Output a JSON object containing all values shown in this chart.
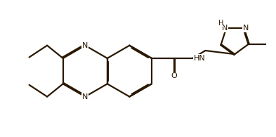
{
  "bg_color": "#ffffff",
  "line_color": "#2a1800",
  "text_color": "#2a1800",
  "line_width": 1.6,
  "font_size": 8.0,
  "fig_width": 3.93,
  "fig_height": 1.95,
  "dpi": 100,
  "xlim": [
    0,
    10
  ],
  "ylim": [
    0,
    5.2
  ]
}
